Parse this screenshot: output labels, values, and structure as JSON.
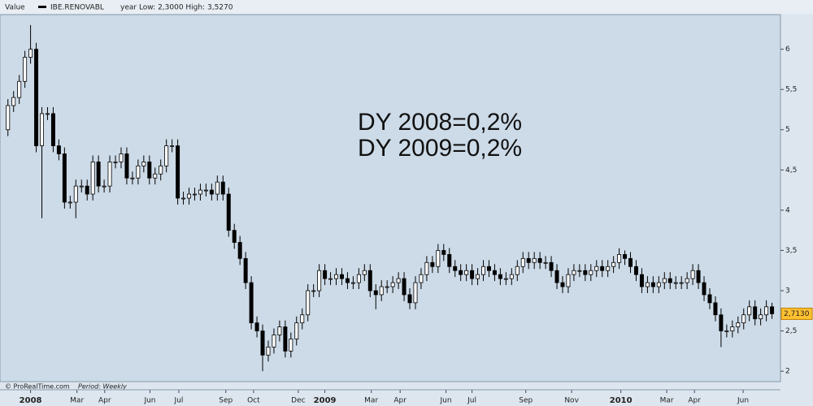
{
  "chart_data": {
    "type": "candlestick",
    "header": {
      "field": "Value",
      "symbol": "IBE.RENOVABL",
      "range": "year Low: 2,3000 High: 3,5270"
    },
    "annotations": [
      "DY 2008=0,2%",
      "DY 2009=0,2%"
    ],
    "footer": {
      "source": "© ProRealTime.com",
      "period": "Period: Weekly"
    },
    "up_color": "#ffffff",
    "down_color": "#000000",
    "xlim": [
      -1.4,
      136.5
    ],
    "ylim": [
      1.87,
      6.43
    ],
    "xticks": [
      {
        "value": 4,
        "label": "2008"
      },
      {
        "value": 12.2,
        "label": "Mar"
      },
      {
        "value": 17.1,
        "label": "Apr"
      },
      {
        "value": 25.1,
        "label": "Jun"
      },
      {
        "value": 30.2,
        "label": "Jul"
      },
      {
        "value": 38.5,
        "label": "Sep"
      },
      {
        "value": 43.4,
        "label": "Oct"
      },
      {
        "value": 51.3,
        "label": "Dec"
      },
      {
        "value": 56,
        "label": "2009"
      },
      {
        "value": 64.2,
        "label": "Mar"
      },
      {
        "value": 69.3,
        "label": "Apr"
      },
      {
        "value": 77.4,
        "label": "Jun"
      },
      {
        "value": 82,
        "label": "Jul"
      },
      {
        "value": 91.5,
        "label": "Sep"
      },
      {
        "value": 99.6,
        "label": "Nov"
      },
      {
        "value": 108.3,
        "label": "2010"
      },
      {
        "value": 116.4,
        "label": "Mar"
      },
      {
        "value": 121.3,
        "label": "Apr"
      },
      {
        "value": 129.9,
        "label": "Jun"
      }
    ],
    "yticks": [
      2,
      {
        "value": 2.5,
        "label": "2,5"
      },
      3,
      {
        "value": 3.5,
        "label": "3,5"
      },
      4,
      {
        "value": 4.5,
        "label": "4,5"
      },
      5,
      {
        "value": 5.5,
        "label": "5,5"
      },
      6
    ],
    "last_price": {
      "value": 2.713,
      "label": "2,7130"
    },
    "open": [
      5.0,
      5.3,
      5.4,
      5.6,
      5.9,
      6.0,
      4.8,
      5.2,
      5.2,
      4.8,
      4.7,
      4.1,
      4.1,
      4.3,
      4.3,
      4.2,
      4.6,
      4.3,
      4.3,
      4.6,
      4.6,
      4.7,
      4.4,
      4.4,
      4.55,
      4.6,
      4.4,
      4.45,
      4.55,
      4.8,
      4.8,
      4.15,
      4.15,
      4.2,
      4.2,
      4.25,
      4.25,
      4.2,
      4.35,
      4.2,
      3.75,
      3.6,
      3.4,
      3.1,
      2.6,
      2.5,
      2.2,
      2.3,
      2.45,
      2.55,
      2.25,
      2.4,
      2.6,
      2.7,
      3.0,
      3.0,
      3.25,
      3.15,
      3.15,
      3.2,
      3.15,
      3.1,
      3.1,
      3.2,
      3.25,
      3.0,
      2.95,
      3.05,
      3.05,
      3.1,
      3.15,
      2.95,
      2.85,
      3.1,
      3.2,
      3.35,
      3.3,
      3.5,
      3.45,
      3.3,
      3.25,
      3.2,
      3.25,
      3.15,
      3.2,
      3.3,
      3.25,
      3.2,
      3.15,
      3.15,
      3.2,
      3.3,
      3.4,
      3.35,
      3.4,
      3.35,
      3.35,
      3.25,
      3.1,
      3.05,
      3.2,
      3.25,
      3.25,
      3.2,
      3.25,
      3.3,
      3.25,
      3.3,
      3.35,
      3.45,
      3.4,
      3.3,
      3.2,
      3.05,
      3.1,
      3.05,
      3.1,
      3.15,
      3.1,
      3.1,
      3.1,
      3.15,
      3.25,
      3.1,
      2.95,
      2.85,
      2.7,
      2.5,
      2.5,
      2.55,
      2.6,
      2.7,
      2.8,
      2.65,
      2.7,
      2.8
    ],
    "high": [
      5.38,
      5.48,
      5.68,
      5.98,
      6.3,
      6.08,
      5.28,
      5.28,
      5.28,
      4.88,
      4.78,
      4.18,
      4.38,
      4.38,
      4.38,
      4.68,
      4.68,
      4.38,
      4.68,
      4.68,
      4.78,
      4.78,
      4.48,
      4.63,
      4.68,
      4.68,
      4.53,
      4.63,
      4.88,
      4.88,
      4.88,
      4.23,
      4.28,
      4.28,
      4.33,
      4.33,
      4.33,
      4.43,
      4.43,
      4.28,
      3.83,
      3.68,
      3.48,
      3.18,
      2.68,
      2.58,
      2.38,
      2.53,
      2.63,
      2.63,
      2.48,
      2.68,
      2.78,
      3.08,
      3.08,
      3.33,
      3.33,
      3.23,
      3.28,
      3.28,
      3.23,
      3.18,
      3.28,
      3.33,
      3.33,
      3.08,
      3.13,
      3.13,
      3.18,
      3.23,
      3.23,
      3.03,
      3.18,
      3.28,
      3.43,
      3.43,
      3.58,
      3.58,
      3.53,
      3.38,
      3.33,
      3.33,
      3.33,
      3.28,
      3.38,
      3.38,
      3.33,
      3.28,
      3.23,
      3.28,
      3.38,
      3.48,
      3.48,
      3.48,
      3.48,
      3.43,
      3.43,
      3.33,
      3.18,
      3.28,
      3.33,
      3.33,
      3.33,
      3.33,
      3.38,
      3.38,
      3.38,
      3.43,
      3.527,
      3.5,
      3.48,
      3.38,
      3.28,
      3.18,
      3.18,
      3.18,
      3.23,
      3.23,
      3.18,
      3.18,
      3.23,
      3.33,
      3.33,
      3.18,
      3.03,
      2.93,
      2.78,
      2.58,
      2.63,
      2.68,
      2.78,
      2.88,
      2.88,
      2.78,
      2.88,
      2.85
    ],
    "low": [
      4.92,
      5.22,
      5.32,
      5.52,
      5.82,
      4.72,
      3.9,
      5.12,
      4.72,
      4.62,
      4.02,
      4.02,
      3.9,
      4.22,
      4.12,
      4.12,
      4.22,
      4.22,
      4.22,
      4.52,
      4.52,
      4.32,
      4.32,
      4.32,
      4.47,
      4.32,
      4.32,
      4.37,
      4.47,
      4.72,
      4.07,
      4.07,
      4.07,
      4.12,
      4.12,
      4.17,
      4.12,
      4.12,
      4.12,
      3.67,
      3.52,
      3.32,
      3.02,
      2.52,
      2.42,
      2.0,
      2.12,
      2.22,
      2.37,
      2.17,
      2.17,
      2.32,
      2.52,
      2.62,
      2.92,
      2.92,
      3.07,
      3.07,
      3.07,
      3.07,
      3.02,
      3.02,
      3.02,
      3.12,
      2.92,
      2.77,
      2.87,
      2.97,
      2.97,
      3.02,
      2.87,
      2.77,
      2.77,
      3.02,
      3.12,
      3.22,
      3.22,
      3.37,
      3.22,
      3.17,
      3.12,
      3.12,
      3.07,
      3.07,
      3.12,
      3.17,
      3.12,
      3.07,
      3.07,
      3.07,
      3.12,
      3.22,
      3.27,
      3.27,
      3.27,
      3.27,
      3.17,
      3.02,
      2.97,
      2.97,
      3.12,
      3.17,
      3.12,
      3.12,
      3.17,
      3.17,
      3.17,
      3.22,
      3.27,
      3.32,
      3.22,
      3.12,
      2.97,
      2.97,
      2.97,
      2.97,
      3.02,
      3.02,
      3.02,
      3.02,
      3.02,
      3.07,
      3.02,
      2.87,
      2.77,
      2.62,
      2.3,
      2.42,
      2.42,
      2.47,
      2.52,
      2.62,
      2.57,
      2.57,
      2.62,
      2.65
    ],
    "close": [
      5.3,
      5.4,
      5.6,
      5.9,
      6.0,
      4.8,
      5.2,
      5.2,
      4.8,
      4.7,
      4.1,
      4.1,
      4.3,
      4.3,
      4.2,
      4.6,
      4.3,
      4.3,
      4.6,
      4.6,
      4.7,
      4.4,
      4.4,
      4.55,
      4.6,
      4.4,
      4.45,
      4.55,
      4.8,
      4.8,
      4.15,
      4.15,
      4.2,
      4.2,
      4.25,
      4.25,
      4.2,
      4.35,
      4.2,
      3.75,
      3.6,
      3.4,
      3.1,
      2.6,
      2.5,
      2.2,
      2.3,
      2.45,
      2.55,
      2.25,
      2.4,
      2.6,
      2.7,
      3.0,
      3.0,
      3.25,
      3.15,
      3.15,
      3.2,
      3.15,
      3.1,
      3.1,
      3.2,
      3.25,
      3.0,
      2.95,
      3.05,
      3.05,
      3.1,
      3.15,
      2.95,
      2.85,
      3.1,
      3.2,
      3.35,
      3.3,
      3.5,
      3.45,
      3.3,
      3.25,
      3.2,
      3.25,
      3.15,
      3.2,
      3.3,
      3.25,
      3.2,
      3.15,
      3.15,
      3.2,
      3.3,
      3.4,
      3.35,
      3.4,
      3.35,
      3.35,
      3.25,
      3.1,
      3.05,
      3.2,
      3.25,
      3.25,
      3.2,
      3.25,
      3.3,
      3.25,
      3.3,
      3.35,
      3.45,
      3.4,
      3.3,
      3.2,
      3.05,
      3.1,
      3.05,
      3.1,
      3.15,
      3.1,
      3.1,
      3.1,
      3.15,
      3.25,
      3.1,
      2.95,
      2.85,
      2.7,
      2.5,
      2.5,
      2.55,
      2.6,
      2.7,
      2.8,
      2.65,
      2.7,
      2.8,
      2.713
    ]
  }
}
